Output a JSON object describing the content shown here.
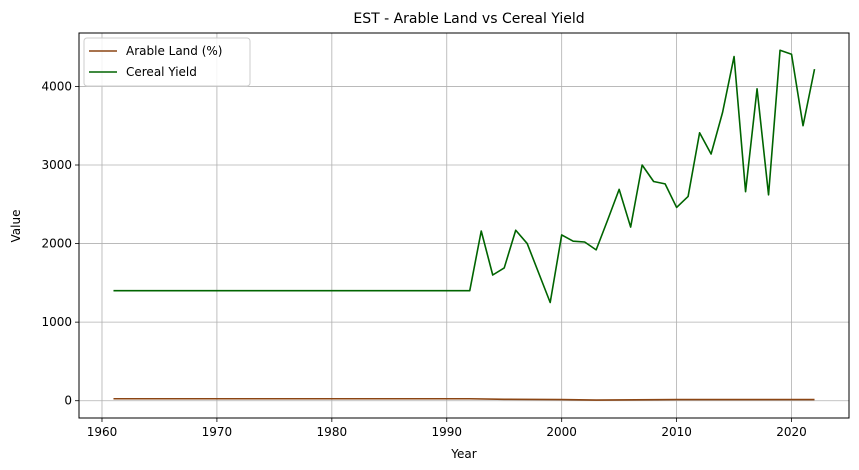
{
  "chart_data": {
    "type": "line",
    "title": "EST - Arable Land vs Cereal Yield",
    "xlabel": "Year",
    "ylabel": "Value",
    "xlim": [
      1958,
      2025
    ],
    "ylim": [
      -220,
      4680
    ],
    "xticks": [
      1960,
      1970,
      1980,
      1990,
      2000,
      2010,
      2020
    ],
    "yticks": [
      0,
      1000,
      2000,
      3000,
      4000
    ],
    "grid": true,
    "legend_position": "top-left",
    "series": [
      {
        "name": "Arable Land (%)",
        "color": "#8b4513",
        "x": [
          1961,
          1992,
          1995,
          2000,
          2003,
          2010,
          2022
        ],
        "y": [
          25,
          25,
          18,
          15,
          8,
          14,
          15
        ]
      },
      {
        "name": "Cereal Yield",
        "color": "#006400",
        "x": [
          1961,
          1992,
          1993,
          1994,
          1995,
          1996,
          1997,
          1999,
          2000,
          2001,
          2002,
          2003,
          2004,
          2005,
          2006,
          2007,
          2008,
          2009,
          2010,
          2011,
          2012,
          2013,
          2014,
          2015,
          2016,
          2017,
          2018,
          2019,
          2020,
          2021,
          2022
        ],
        "y": [
          1400,
          1400,
          2160,
          1600,
          1690,
          2170,
          2000,
          1250,
          2110,
          2030,
          2020,
          1920,
          2300,
          2690,
          2210,
          3000,
          2790,
          2760,
          2460,
          2600,
          3410,
          3140,
          3670,
          4380,
          2660,
          3970,
          2620,
          4460,
          4410,
          3500,
          4220
        ]
      }
    ]
  }
}
